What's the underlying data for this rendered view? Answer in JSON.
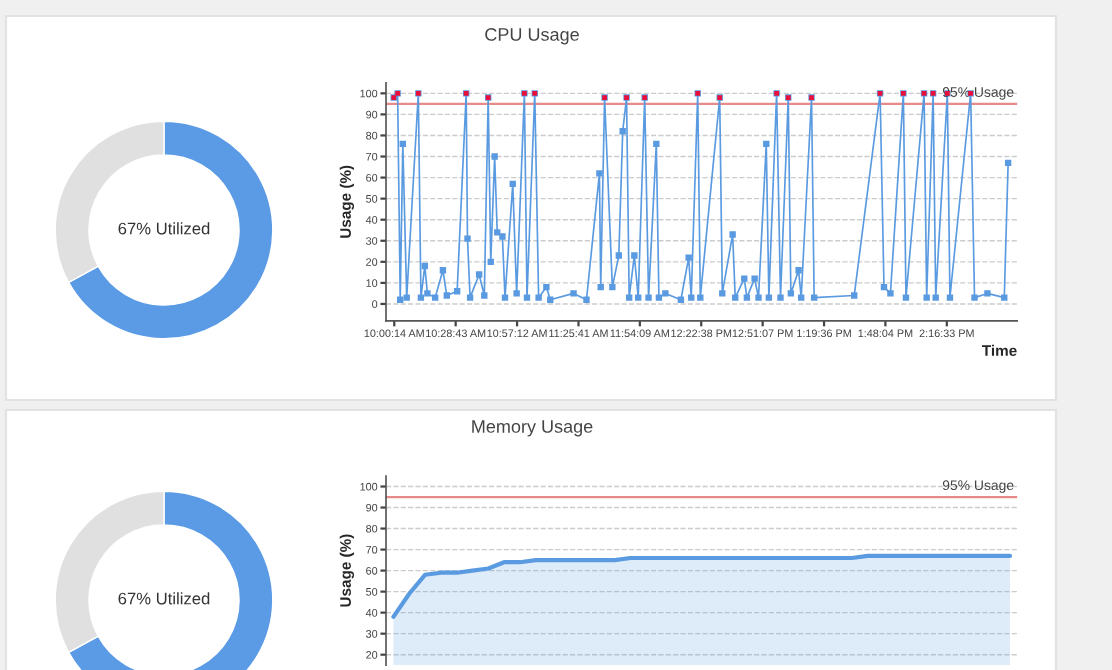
{
  "chart_data": [
    {
      "type": "donut",
      "categories": [
        null,
        null
      ],
      "values": [
        67,
        33
      ],
      "colors": [
        "#5b9be6",
        "#e0e0e0"
      ],
      "annotations": [
        "67% Utilized"
      ]
    },
    {
      "type": "line",
      "title": "CPU Usage",
      "ylabel": "Usage (%)",
      "xlabel": "Time",
      "xlim": [
        9.94,
        14.82
      ],
      "ylim": [
        -8,
        105
      ],
      "xticks": [
        {
          "value": 10.0039,
          "label": "10:00:14 AM"
        },
        {
          "value": 10.4786,
          "label": "10:28:43 AM"
        },
        {
          "value": 10.9533,
          "label": "10:57:12 AM"
        },
        {
          "value": 11.4281,
          "label": "11:25:41 AM"
        },
        {
          "value": 11.9025,
          "label": "11:54:09 AM"
        },
        {
          "value": 12.3772,
          "label": "12:22:38 PM"
        },
        {
          "value": 12.8519,
          "label": "12:51:07 PM"
        },
        {
          "value": 13.3267,
          "label": "1:19:36 PM"
        },
        {
          "value": 13.8011,
          "label": "1:48:04 PM"
        },
        {
          "value": 14.2758,
          "label": "2:16:33 PM"
        }
      ],
      "yticks": [
        0,
        10,
        20,
        30,
        40,
        50,
        60,
        70,
        80,
        90,
        100
      ],
      "grid": "y",
      "legend": false,
      "ref_lines": [
        {
          "axis": "y",
          "value": 95,
          "label": "95% Usage",
          "color": "#e88a8a"
        }
      ],
      "series": [
        {
          "type": "line",
          "color": "#5a9ae0",
          "marker": "square",
          "line_style": "solid",
          "x": [
            10.0,
            10.03,
            10.05,
            10.07,
            10.1,
            10.19,
            10.21,
            10.24,
            10.26,
            10.32,
            10.38,
            10.41,
            10.49,
            10.56,
            10.57,
            10.59,
            10.66,
            10.7,
            10.73,
            10.75,
            10.78,
            10.8,
            10.84,
            10.86,
            10.92,
            10.95,
            11.01,
            11.03,
            11.09,
            11.12,
            11.18,
            11.21,
            11.39,
            11.49,
            11.59,
            11.6,
            11.63,
            11.69,
            11.74,
            11.77,
            11.8,
            11.82,
            11.86,
            11.89,
            11.94,
            11.97,
            12.03,
            12.05,
            12.1,
            12.22,
            12.28,
            12.3,
            12.35,
            12.37,
            12.52,
            12.54,
            12.62,
            12.64,
            12.71,
            12.73,
            12.79,
            12.82,
            12.88,
            12.9,
            12.96,
            12.99,
            13.05,
            13.07,
            13.13,
            13.15,
            13.23,
            13.25,
            13.56,
            13.76,
            13.79,
            13.84,
            13.94,
            13.96,
            14.1,
            14.12,
            14.17,
            14.19,
            14.28,
            14.3,
            14.46,
            14.49,
            14.59,
            14.72,
            14.75
          ],
          "values": [
            98,
            100,
            2,
            76,
            3,
            100,
            3,
            18,
            5,
            3,
            16,
            4,
            6,
            100,
            31,
            3,
            14,
            4,
            98,
            20,
            70,
            34,
            32,
            3,
            57,
            5,
            100,
            3,
            100,
            3,
            8,
            2,
            5,
            2,
            62,
            8,
            98,
            8,
            23,
            82,
            98,
            3,
            23,
            3,
            98,
            3,
            76,
            3,
            5,
            2,
            22,
            3,
            100,
            3,
            98,
            5,
            33,
            3,
            12,
            3,
            12,
            3,
            76,
            3,
            100,
            3,
            98,
            5,
            16,
            3,
            98,
            3,
            4,
            100,
            8,
            5,
            100,
            3,
            100,
            3,
            100,
            3,
            100,
            3,
            100,
            3,
            5,
            3,
            67
          ]
        },
        {
          "type": "scatter",
          "color": "#e8103a",
          "marker": "square",
          "x": [
            10.0,
            10.03,
            10.19,
            10.56,
            10.73,
            11.01,
            11.09,
            11.63,
            11.8,
            11.94,
            12.35,
            12.52,
            12.96,
            13.05,
            13.23,
            13.76,
            13.94,
            14.1,
            14.17,
            14.28,
            14.46
          ],
          "values": [
            98,
            100,
            100,
            100,
            98,
            100,
            100,
            98,
            98,
            98,
            100,
            98,
            100,
            98,
            98,
            100,
            100,
            100,
            100,
            100,
            100
          ]
        }
      ]
    },
    {
      "type": "donut",
      "categories": [
        null,
        null
      ],
      "values": [
        67,
        33
      ],
      "colors": [
        "#5b9be6",
        "#e0e0e0"
      ],
      "annotations": [
        "67% Utilized"
      ]
    },
    {
      "type": "area",
      "title": "Memory Usage",
      "ylabel": "Usage (%)",
      "ylim": [
        15,
        105
      ],
      "yticks": [
        20,
        30,
        40,
        50,
        60,
        70,
        80,
        90,
        100
      ],
      "grid": "y",
      "legend": false,
      "tick_labels": "y",
      "ref_lines": [
        {
          "axis": "y",
          "value": 95,
          "label": "95% Usage",
          "color": "#e88a8a"
        }
      ],
      "categories": [
        null,
        null,
        null,
        null,
        null,
        null,
        null,
        null,
        null,
        null,
        null,
        null,
        null,
        null,
        null,
        null,
        null,
        null,
        null,
        null,
        null,
        null,
        null,
        null,
        null,
        null,
        null,
        null,
        null,
        null,
        null,
        null,
        null,
        null,
        null,
        null,
        null,
        null,
        null,
        null
      ],
      "series": [
        {
          "type": "area",
          "color": "#5a9ae0",
          "values": [
            38,
            49,
            58,
            59,
            59,
            60,
            61,
            64,
            64,
            65,
            65,
            65,
            65,
            65,
            65,
            66,
            66,
            66,
            66,
            66,
            66,
            66,
            66,
            66,
            66,
            66,
            66,
            66,
            66,
            66,
            67,
            67,
            67,
            67,
            67,
            67,
            67,
            67,
            67,
            67
          ]
        }
      ]
    }
  ]
}
